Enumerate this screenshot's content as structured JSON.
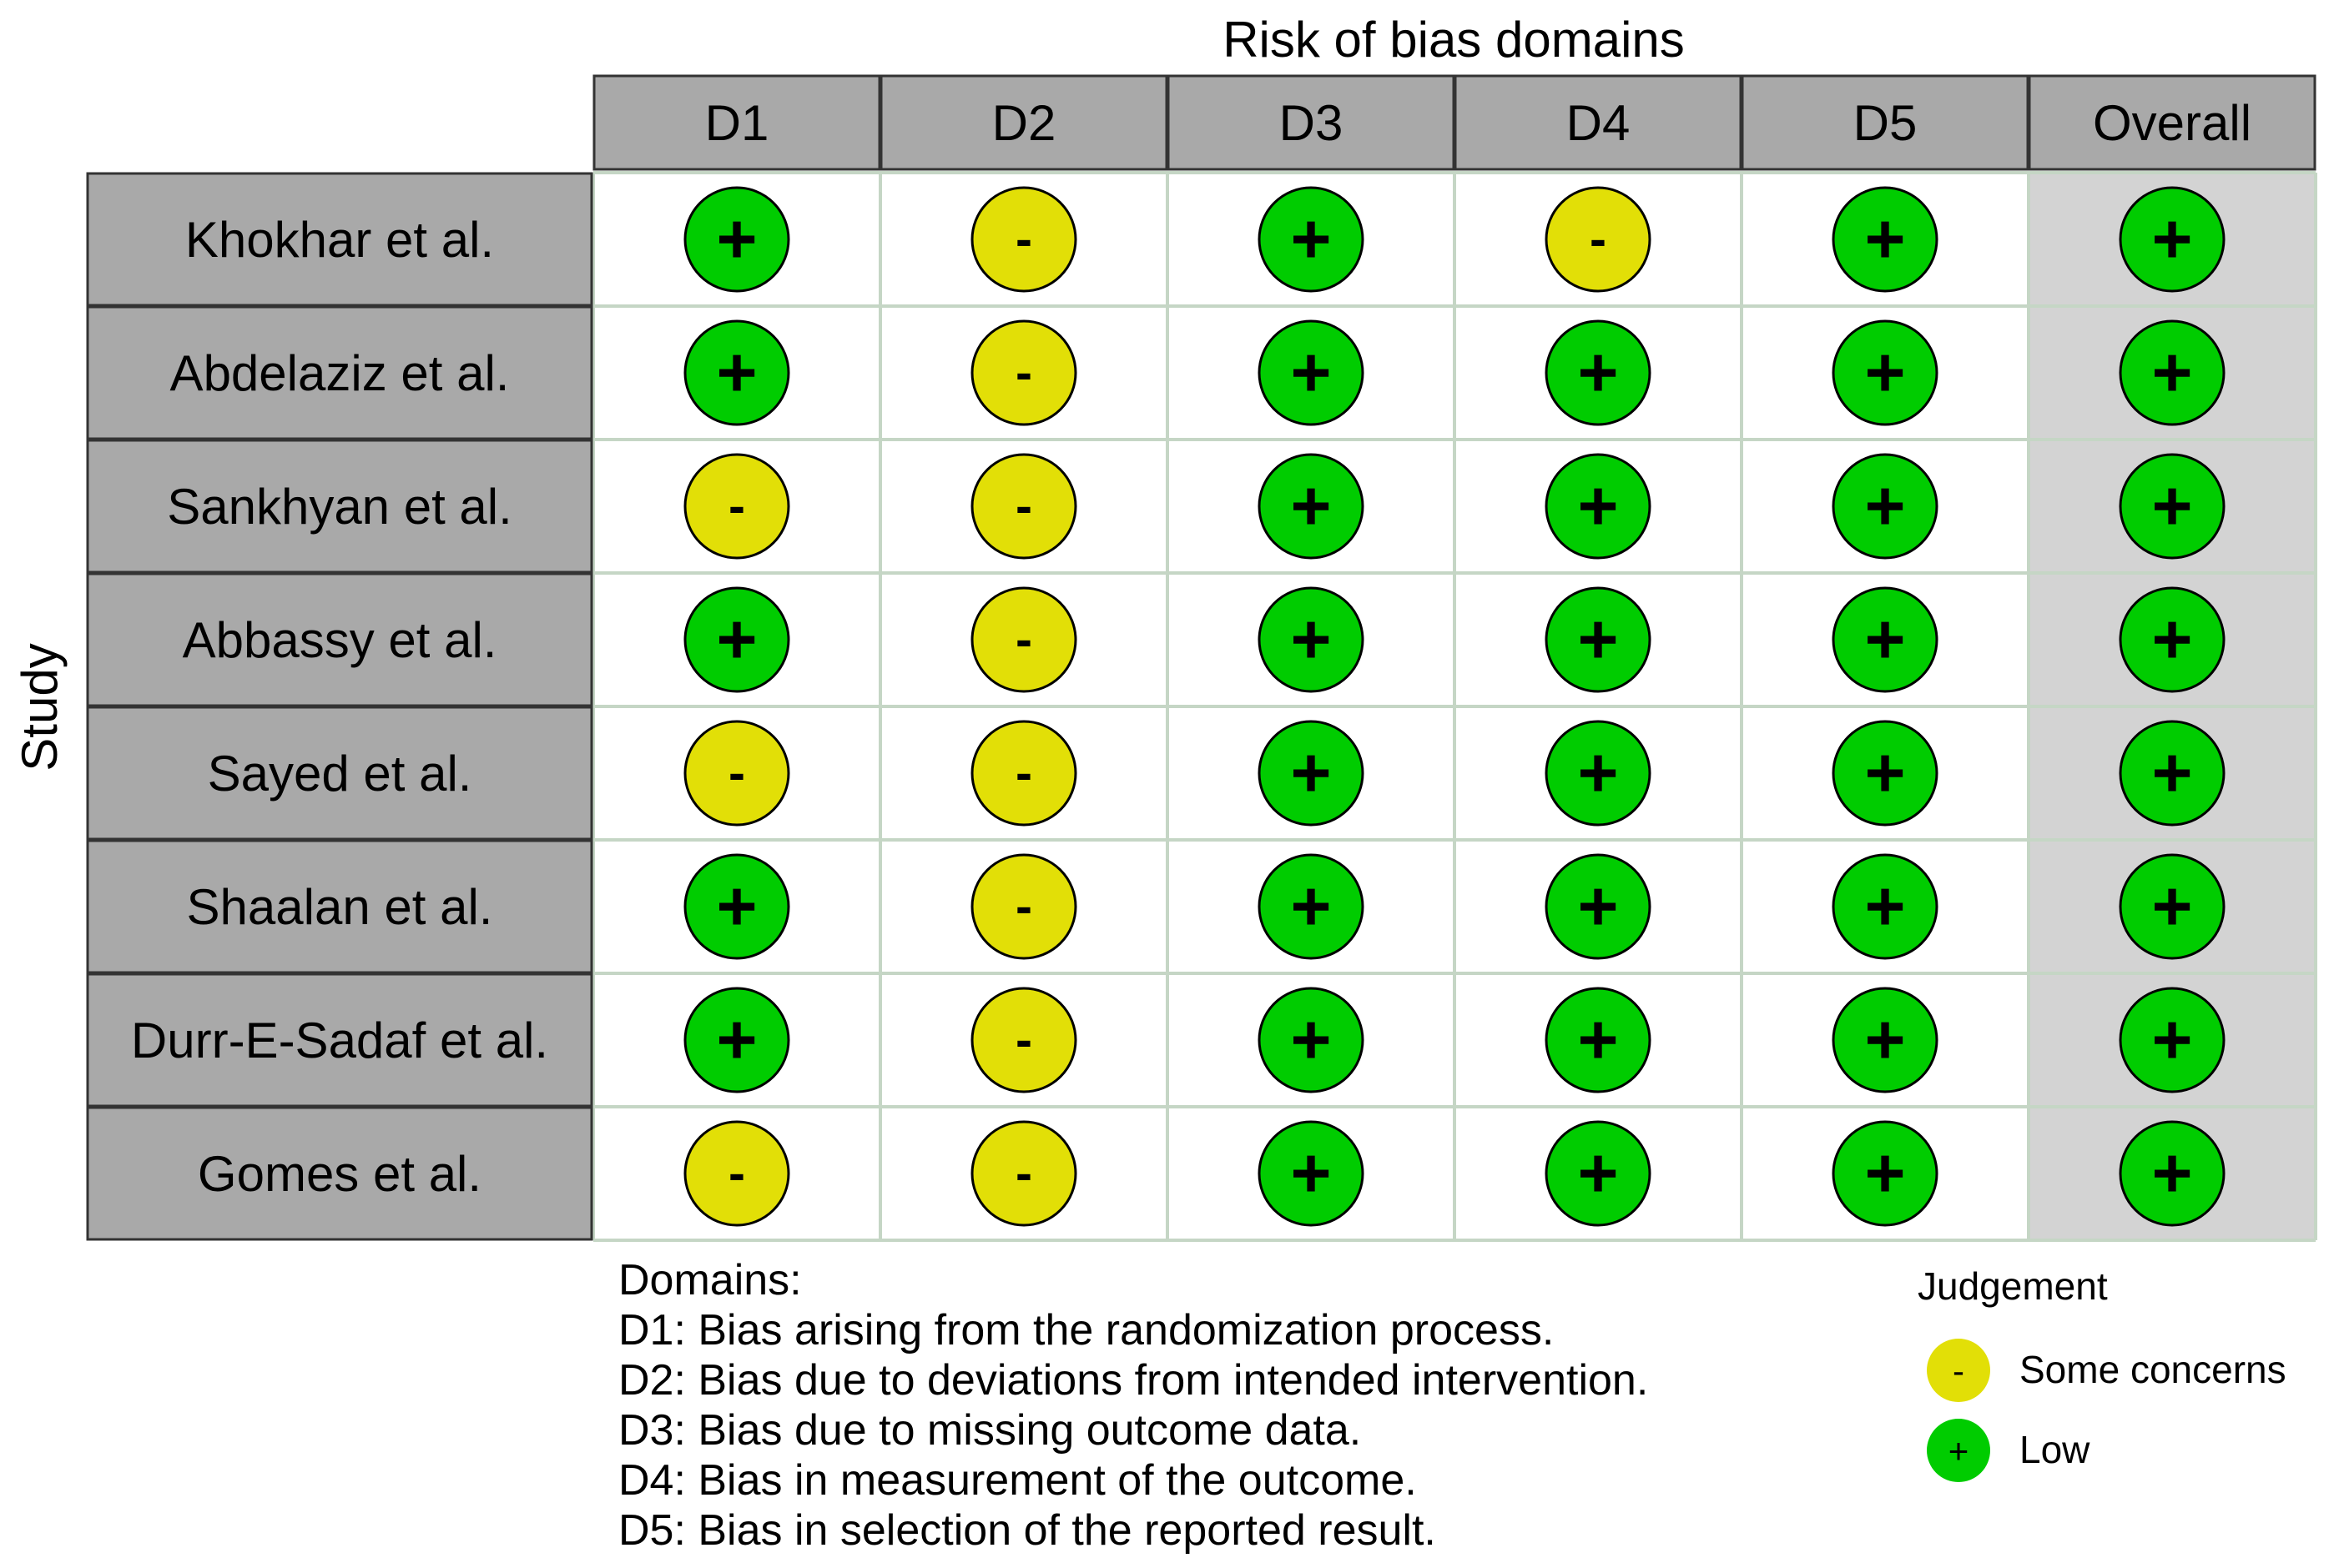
{
  "chart_data": {
    "type": "table",
    "title": "Risk of bias domains",
    "row_axis_label": "Study",
    "columns": [
      "D1",
      "D2",
      "D3",
      "D4",
      "D5",
      "Overall"
    ],
    "studies": [
      "Khokhar et al.",
      "Abdelaziz et al.",
      "Sankhyan et al.",
      "Abbassy et al.",
      "Sayed et al.",
      "Shaalan et al.",
      "Durr-E-Sadaf et al.",
      "Gomes et al."
    ],
    "judgements": [
      [
        "low",
        "some",
        "low",
        "some",
        "low",
        "low"
      ],
      [
        "low",
        "some",
        "low",
        "low",
        "low",
        "low"
      ],
      [
        "some",
        "some",
        "low",
        "low",
        "low",
        "low"
      ],
      [
        "low",
        "some",
        "low",
        "low",
        "low",
        "low"
      ],
      [
        "some",
        "some",
        "low",
        "low",
        "low",
        "low"
      ],
      [
        "low",
        "some",
        "low",
        "low",
        "low",
        "low"
      ],
      [
        "low",
        "some",
        "low",
        "low",
        "low",
        "low"
      ],
      [
        "some",
        "some",
        "low",
        "low",
        "low",
        "low"
      ]
    ],
    "symbols": {
      "low": "+",
      "some": "-"
    },
    "domains_heading": "Domains:",
    "domain_descriptions": [
      "D1: Bias arising from the randomization process.",
      "D2: Bias due to deviations from intended intervention.",
      "D3: Bias due to missing outcome data.",
      "D4: Bias in measurement of the outcome.",
      "D5: Bias in selection of the reported result."
    ],
    "legend": {
      "title": "Judgement",
      "entries": [
        {
          "key": "some",
          "symbol": "-",
          "label": "Some concerns"
        },
        {
          "key": "low",
          "symbol": "+",
          "label": "Low"
        }
      ]
    }
  },
  "colors": {
    "low": "#00cc00",
    "some": "#e2df07",
    "header_fill": "#a9a9a9",
    "overall_fill": "#d3d3d3",
    "grid_line": "#c5d6c5",
    "border": "#333333"
  }
}
